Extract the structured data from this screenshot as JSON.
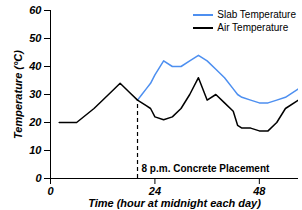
{
  "chart_data": {
    "type": "line",
    "x_label": "Time (hour at midnight each day)",
    "y_label": "Temperature (°C)",
    "x": [
      2,
      6,
      10,
      14,
      16,
      18,
      20,
      21,
      22,
      23,
      24,
      26,
      28,
      30,
      32,
      34,
      36,
      38,
      40,
      42,
      43,
      44,
      46,
      48,
      50,
      52,
      54,
      57
    ],
    "series": [
      {
        "name": "Slab Temperature",
        "color": "#4d8ff0",
        "values": [
          null,
          null,
          null,
          null,
          null,
          null,
          28,
          30,
          32,
          34,
          37,
          42,
          40,
          40,
          42,
          44,
          42,
          39,
          36,
          32,
          30,
          29,
          28,
          27,
          27,
          28,
          29,
          32
        ]
      },
      {
        "name": "Air Temperature",
        "color": "#000000",
        "values": [
          20,
          20,
          25,
          31,
          34,
          31,
          28,
          27,
          26,
          25,
          22,
          21,
          22,
          25,
          30,
          36,
          28,
          30,
          27,
          24,
          19,
          18,
          18,
          17,
          17,
          20,
          25,
          28
        ]
      }
    ],
    "annotations": [
      {
        "text": "8 p.m. Concrete Placement",
        "x": 20,
        "y": [
          0,
          28
        ],
        "line_style": "dashed"
      }
    ],
    "xlim": [
      0,
      57
    ],
    "xticks": [
      0,
      24,
      48
    ],
    "ylim": [
      0,
      60
    ],
    "yticks": [
      0,
      10,
      20,
      30,
      40,
      50,
      60
    ],
    "grid": false,
    "legend": "top-right"
  }
}
